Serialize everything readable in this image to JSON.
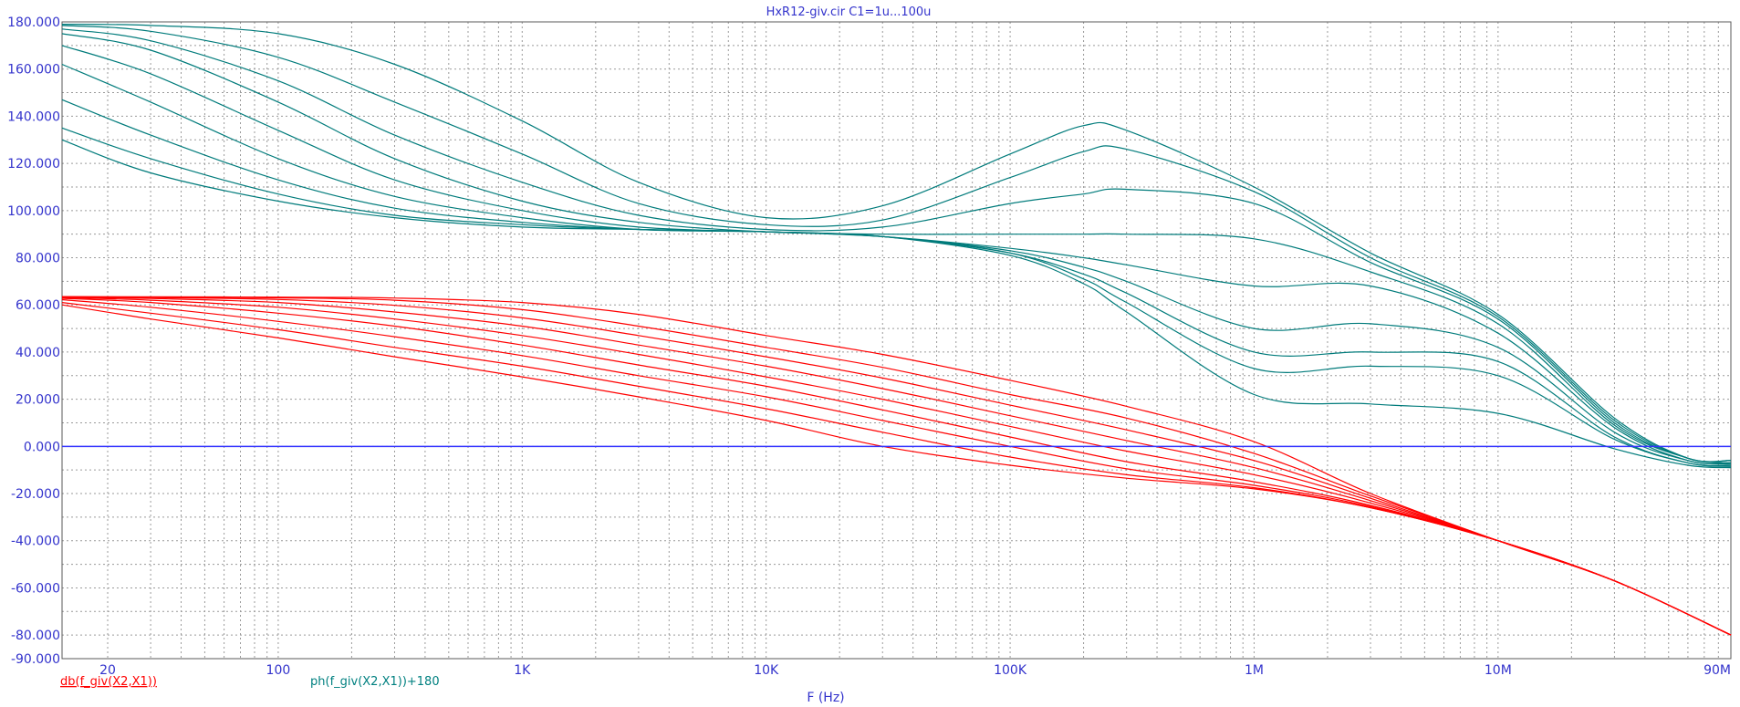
{
  "chart_data": {
    "type": "line",
    "title": "HxR12-giv.cir C1=1u...100u",
    "xlabel": "F (Hz)",
    "x_scale": "log",
    "xlim": [
      13,
      90000000
    ],
    "ylim": [
      -90,
      180
    ],
    "x_tick_labels": [
      {
        "value": 20,
        "label": "20"
      },
      {
        "value": 100,
        "label": "100"
      },
      {
        "value": 1000,
        "label": "1K"
      },
      {
        "value": 10000,
        "label": "10K"
      },
      {
        "value": 100000,
        "label": "100K"
      },
      {
        "value": 1000000,
        "label": "1M"
      },
      {
        "value": 10000000,
        "label": "10M"
      },
      {
        "value": 90000000,
        "label": "90M"
      }
    ],
    "y_tick_labels": [
      {
        "value": 180,
        "label": "180.000"
      },
      {
        "value": 160,
        "label": "160.000"
      },
      {
        "value": 140,
        "label": "140.000"
      },
      {
        "value": 120,
        "label": "120.000"
      },
      {
        "value": 100,
        "label": "100.000"
      },
      {
        "value": 80,
        "label": "80.000"
      },
      {
        "value": 60,
        "label": "60.000"
      },
      {
        "value": 40,
        "label": "40.000"
      },
      {
        "value": 20,
        "label": "20.000"
      },
      {
        "value": 0,
        "label": "0.000"
      },
      {
        "value": -20,
        "label": "-20.000"
      },
      {
        "value": -40,
        "label": "-40.000"
      },
      {
        "value": -60,
        "label": "-60.000"
      },
      {
        "value": -80,
        "label": "-80.000"
      },
      {
        "value": -90,
        "label": "-90.000"
      }
    ],
    "grid": true,
    "reference_line": {
      "y": 0,
      "color": "#3333ff"
    },
    "legend": [
      {
        "label": "db(f_giv(X2,X1))",
        "color": "#ff0000"
      },
      {
        "label": "ph(f_giv(X2,X1))+180",
        "color": "#008080"
      }
    ],
    "colors": {
      "magnitude": "#ff0000",
      "phase": "#007b7b",
      "text": "#3333cc",
      "grid": "#9a9a9a"
    },
    "series": [
      {
        "group": "magnitude",
        "x": [
          13,
          30,
          100,
          300,
          1000,
          3000,
          10000,
          30000,
          100000,
          300000,
          1000000,
          3000000,
          10000000,
          30000000,
          90000000
        ],
        "y": [
          63.5,
          63.4,
          63.3,
          62.9,
          61,
          56,
          47,
          39,
          28,
          17,
          2,
          -20,
          -40,
          -57,
          -80
        ]
      },
      {
        "group": "magnitude",
        "x": [
          13,
          30,
          100,
          300,
          1000,
          3000,
          10000,
          30000,
          100000,
          300000,
          1000000,
          3000000,
          10000000,
          30000000,
          90000000
        ],
        "y": [
          63.5,
          63.3,
          63,
          62,
          58,
          51,
          42,
          33.5,
          22,
          12,
          -3,
          -21,
          -40,
          -57,
          -80
        ]
      },
      {
        "group": "magnitude",
        "x": [
          13,
          30,
          100,
          300,
          1000,
          3000,
          10000,
          30000,
          100000,
          300000,
          1000000,
          3000000,
          10000000,
          30000000,
          90000000
        ],
        "y": [
          63.4,
          63.1,
          62.3,
          59.8,
          54.5,
          47,
          38,
          29,
          17.5,
          7,
          -6,
          -22,
          -40,
          -57,
          -80
        ]
      },
      {
        "group": "magnitude",
        "x": [
          13,
          30,
          100,
          300,
          1000,
          3000,
          10000,
          30000,
          100000,
          300000,
          1000000,
          3000000,
          10000000,
          30000000,
          90000000
        ],
        "y": [
          63.3,
          62.7,
          61,
          57,
          51,
          43,
          34,
          24.5,
          13,
          2.5,
          -9,
          -23,
          -40,
          -57,
          -80
        ]
      },
      {
        "group": "magnitude",
        "x": [
          13,
          30,
          100,
          300,
          1000,
          3000,
          10000,
          30000,
          100000,
          300000,
          1000000,
          3000000,
          10000000,
          30000000,
          90000000
        ],
        "y": [
          63.1,
          62,
          59,
          54,
          47,
          39,
          29.5,
          20,
          8.5,
          -2,
          -12,
          -24,
          -40,
          -57,
          -80
        ]
      },
      {
        "group": "magnitude",
        "x": [
          13,
          30,
          100,
          300,
          1000,
          3000,
          10000,
          30000,
          100000,
          300000,
          1000000,
          3000000,
          10000000,
          30000000,
          90000000
        ],
        "y": [
          62.8,
          61,
          56.5,
          51,
          43,
          34.5,
          25.5,
          15.5,
          4,
          -6.5,
          -15,
          -25,
          -40,
          -57,
          -80
        ]
      },
      {
        "group": "magnitude",
        "x": [
          13,
          30,
          100,
          300,
          1000,
          3000,
          10000,
          30000,
          100000,
          300000,
          1000000,
          3000000,
          10000000,
          30000000,
          90000000
        ],
        "y": [
          62.2,
          59,
          53,
          46.5,
          38.5,
          30,
          21,
          11,
          0,
          -9.5,
          -16.5,
          -25.5,
          -40,
          -57,
          -80
        ]
      },
      {
        "group": "magnitude",
        "x": [
          13,
          30,
          100,
          300,
          1000,
          3000,
          10000,
          30000,
          100000,
          300000,
          1000000,
          3000000,
          10000000,
          30000000,
          90000000
        ],
        "y": [
          61,
          56.5,
          49.5,
          42,
          34,
          25.5,
          16,
          6,
          -4.5,
          -12,
          -17.5,
          -26,
          -40,
          -57,
          -80
        ]
      },
      {
        "group": "magnitude",
        "x": [
          13,
          30,
          100,
          300,
          1000,
          3000,
          10000,
          30000,
          100000,
          300000,
          1000000,
          3000000,
          10000000,
          30000000,
          90000000
        ],
        "y": [
          60,
          54,
          46,
          38,
          29.5,
          21,
          11,
          0,
          -8,
          -13.5,
          -18,
          -26,
          -40,
          -57,
          -80
        ]
      },
      {
        "group": "phase",
        "x": [
          13,
          30,
          100,
          300,
          1000,
          3000,
          10000,
          30000,
          100000,
          200000,
          300000,
          1000000,
          3000000,
          10000000,
          30000000,
          60000000,
          90000000
        ],
        "y": [
          179,
          178.5,
          175,
          162,
          138,
          112,
          97,
          102,
          124,
          136,
          134,
          110,
          82,
          56,
          12,
          -5,
          -6
        ]
      },
      {
        "group": "phase",
        "x": [
          13,
          30,
          100,
          300,
          1000,
          3000,
          10000,
          30000,
          100000,
          200000,
          300000,
          1000000,
          3000000,
          10000000,
          30000000,
          60000000,
          90000000
        ],
        "y": [
          178.5,
          176,
          165,
          146,
          124,
          103,
          94,
          96,
          114,
          125,
          126,
          108,
          80,
          55,
          11,
          -5,
          -6
        ]
      },
      {
        "group": "phase",
        "x": [
          13,
          30,
          100,
          300,
          1000,
          3000,
          10000,
          30000,
          100000,
          200000,
          300000,
          1000000,
          3000000,
          10000000,
          30000000,
          60000000,
          90000000
        ],
        "y": [
          177,
          172,
          155,
          132,
          112,
          98,
          92,
          93,
          103,
          107,
          109,
          103,
          78,
          54,
          10,
          -5,
          -6
        ]
      },
      {
        "group": "phase",
        "x": [
          13,
          30,
          100,
          300,
          1000,
          3000,
          10000,
          30000,
          100000,
          200000,
          300000,
          1000000,
          3000000,
          10000000,
          30000000,
          60000000,
          90000000
        ],
        "y": [
          175,
          168,
          146,
          122,
          104,
          95,
          91,
          90,
          90,
          90,
          90,
          88,
          74,
          52,
          9,
          -5,
          -7
        ]
      },
      {
        "group": "phase",
        "x": [
          13,
          30,
          100,
          300,
          1000,
          3000,
          10000,
          30000,
          100000,
          200000,
          300000,
          1000000,
          3000000,
          10000000,
          30000000,
          60000000,
          90000000
        ],
        "y": [
          170,
          158,
          134,
          113,
          100,
          93,
          91,
          89,
          84,
          80,
          77,
          68,
          68,
          48,
          8,
          -6,
          -7
        ]
      },
      {
        "group": "phase",
        "x": [
          13,
          30,
          100,
          300,
          1000,
          3000,
          10000,
          30000,
          100000,
          200000,
          300000,
          1000000,
          3000000,
          10000000,
          30000000,
          60000000,
          90000000
        ],
        "y": [
          162,
          146,
          122,
          106,
          97,
          92,
          91,
          89,
          83,
          76,
          70,
          50,
          52,
          42,
          6,
          -6,
          -7.5
        ]
      },
      {
        "group": "phase",
        "x": [
          13,
          30,
          100,
          300,
          1000,
          3000,
          10000,
          30000,
          100000,
          200000,
          300000,
          1000000,
          3000000,
          10000000,
          30000000,
          60000000,
          90000000
        ],
        "y": [
          147,
          132,
          113,
          101,
          95,
          92,
          91,
          89,
          82,
          73,
          65,
          40,
          40,
          36,
          4,
          -7,
          -8
        ]
      },
      {
        "group": "phase",
        "x": [
          13,
          30,
          100,
          300,
          1000,
          3000,
          10000,
          30000,
          100000,
          200000,
          300000,
          1000000,
          3000000,
          10000000,
          30000000,
          60000000,
          90000000
        ],
        "y": [
          135,
          122,
          107,
          98,
          94,
          92,
          91,
          89,
          82,
          71,
          61,
          33,
          34,
          30,
          3,
          -7,
          -8.5
        ]
      },
      {
        "group": "phase",
        "x": [
          13,
          30,
          100,
          300,
          1000,
          3000,
          10000,
          30000,
          100000,
          200000,
          300000,
          1000000,
          3000000,
          10000000,
          30000000,
          60000000,
          90000000
        ],
        "y": [
          130,
          116,
          104,
          97,
          93,
          92,
          91,
          89,
          81,
          69,
          57,
          22,
          18,
          14,
          -1,
          -8,
          -9
        ]
      }
    ]
  }
}
